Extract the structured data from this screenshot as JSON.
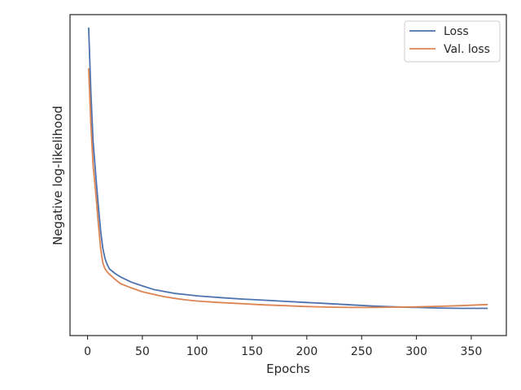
{
  "chart_data": {
    "type": "line",
    "title": "",
    "xlabel": "Epochs",
    "ylabel": "Negative log-likelihood",
    "xlim": [
      -16,
      382
    ],
    "ylim": [
      0,
      1.0
    ],
    "xticks": [
      0,
      50,
      100,
      150,
      200,
      250,
      300,
      350
    ],
    "yticks_visible": false,
    "grid": false,
    "legend_position": "top-right",
    "series": [
      {
        "name": "Loss",
        "color": "#4c72b0",
        "x": [
          1,
          3,
          5,
          8,
          10,
          12,
          14,
          16,
          18,
          20,
          25,
          30,
          40,
          50,
          60,
          70,
          80,
          90,
          100,
          120,
          140,
          160,
          180,
          200,
          220,
          240,
          260,
          280,
          300,
          320,
          340,
          365
        ],
        "y": [
          1.0,
          0.78,
          0.61,
          0.47,
          0.38,
          0.3,
          0.24,
          0.205,
          0.185,
          0.17,
          0.155,
          0.143,
          0.125,
          0.112,
          0.1,
          0.093,
          0.086,
          0.082,
          0.078,
          0.072,
          0.067,
          0.063,
          0.059,
          0.055,
          0.051,
          0.047,
          0.043,
          0.04,
          0.038,
          0.036,
          0.035,
          0.035
        ]
      },
      {
        "name": "Val. loss",
        "color": "#dd8452",
        "x": [
          1,
          3,
          5,
          8,
          10,
          12,
          14,
          16,
          18,
          20,
          25,
          30,
          40,
          50,
          60,
          70,
          80,
          90,
          100,
          120,
          140,
          160,
          180,
          200,
          220,
          240,
          260,
          280,
          300,
          320,
          340,
          365
        ],
        "y": [
          0.86,
          0.67,
          0.53,
          0.41,
          0.32,
          0.24,
          0.19,
          0.17,
          0.16,
          0.152,
          0.135,
          0.12,
          0.105,
          0.092,
          0.083,
          0.075,
          0.069,
          0.064,
          0.06,
          0.055,
          0.051,
          0.047,
          0.044,
          0.041,
          0.039,
          0.038,
          0.038,
          0.039,
          0.04,
          0.042,
          0.044,
          0.048
        ]
      }
    ]
  }
}
